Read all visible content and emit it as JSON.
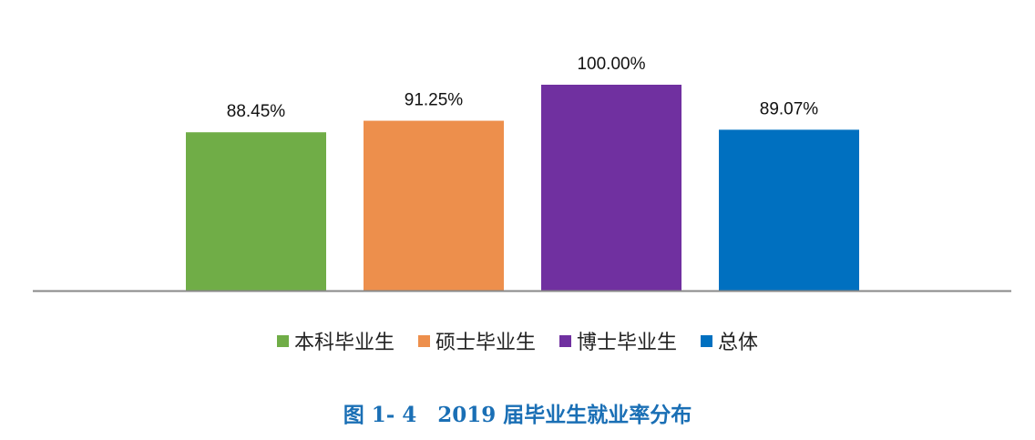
{
  "chart_data": {
    "type": "bar",
    "series": [
      {
        "name": "本科毕业生",
        "values": [
          88.45
        ],
        "label": "88.45%",
        "color": "#70ad47"
      },
      {
        "name": "硕士毕业生",
        "values": [
          91.25
        ],
        "label": "91.25%",
        "color": "#ed8f4c"
      },
      {
        "name": "博士毕业生",
        "values": [
          100.0
        ],
        "label": "100.00%",
        "color": "#7030a0"
      },
      {
        "name": "总体",
        "values": [
          89.07
        ],
        "label": "89.07%",
        "color": "#0070c0"
      }
    ],
    "title": "图 1- 4　2019 届毕业生就业率分布",
    "xlabel": "",
    "ylabel": "",
    "ylim": [
      50,
      100
    ],
    "grid": false,
    "legend": "bottom"
  }
}
